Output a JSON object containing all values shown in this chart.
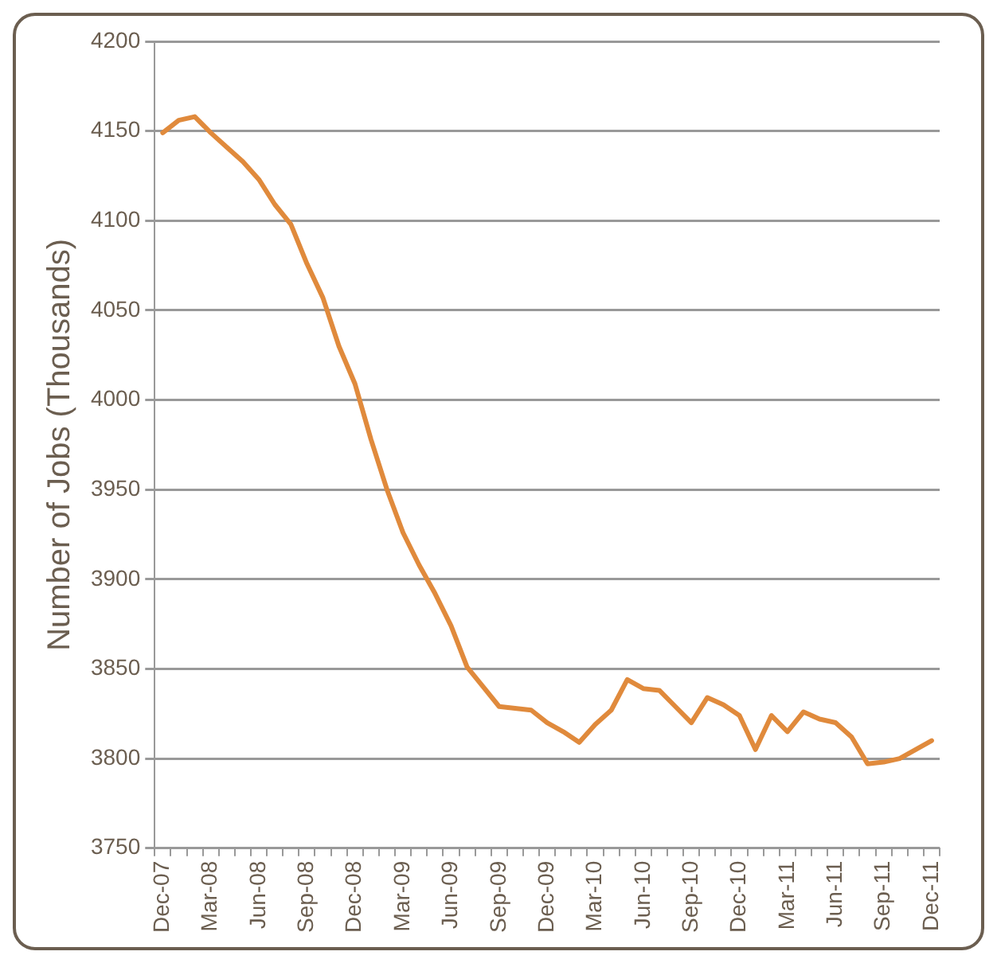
{
  "chart_data": {
    "type": "line",
    "ylabel": "Number of Jobs (Thousands)",
    "categories": [
      "Dec-07",
      null,
      null,
      "Mar-08",
      null,
      null,
      "Jun-08",
      null,
      null,
      "Sep-08",
      null,
      null,
      "Dec-08",
      null,
      null,
      "Mar-09",
      null,
      null,
      "Jun-09",
      null,
      null,
      "Sep-09",
      null,
      null,
      "Dec-09",
      null,
      null,
      "Mar-10",
      null,
      null,
      "Jun-10",
      null,
      null,
      "Sep-10",
      null,
      null,
      "Dec-10",
      null,
      null,
      "Mar-11",
      null,
      null,
      "Jun-11",
      null,
      null,
      "Sep-11",
      null,
      null,
      "Dec-11"
    ],
    "series": [
      {
        "color": "#e08a3c",
        "values": [
          4149,
          4156,
          4158,
          4149,
          4141,
          4133,
          4123,
          4109,
          4098,
          4076,
          4057,
          4030,
          4009,
          3978,
          3950,
          3926,
          3908,
          3892,
          3874,
          3851,
          3840,
          3829,
          3828,
          3827,
          3820,
          3815,
          3809,
          3819,
          3827,
          3844,
          3839,
          3838,
          3829,
          3820,
          3834,
          3830,
          3824,
          3805,
          3824,
          3815,
          3826,
          3822,
          3820,
          3812,
          3797,
          3798,
          3800,
          3805,
          3810
        ]
      }
    ],
    "ylim": [
      3750,
      4200
    ],
    "yticks": [
      3750,
      3800,
      3850,
      3900,
      3950,
      4000,
      4050,
      4100,
      4150,
      4200
    ],
    "grid": "y",
    "legend": false,
    "marker": "none",
    "line_style": "solid"
  }
}
